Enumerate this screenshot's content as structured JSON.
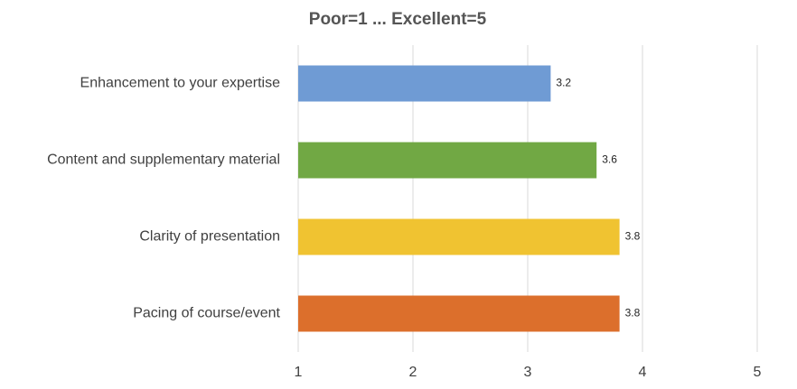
{
  "chart_data": {
    "type": "bar",
    "orientation": "horizontal",
    "title": "Poor=1 ... Excellent=5",
    "categories": [
      "Enhancement to your expertise",
      "Content and supplementary material",
      "Clarity of presentation",
      "Pacing of course/event"
    ],
    "values": [
      3.2,
      3.6,
      3.8,
      3.8
    ],
    "colors": [
      "#6f9bd4",
      "#71a844",
      "#f0c331",
      "#dc6f2c"
    ],
    "xlim": [
      1,
      5
    ],
    "xticks": [
      1,
      2,
      3,
      4,
      5
    ],
    "grid": true
  }
}
